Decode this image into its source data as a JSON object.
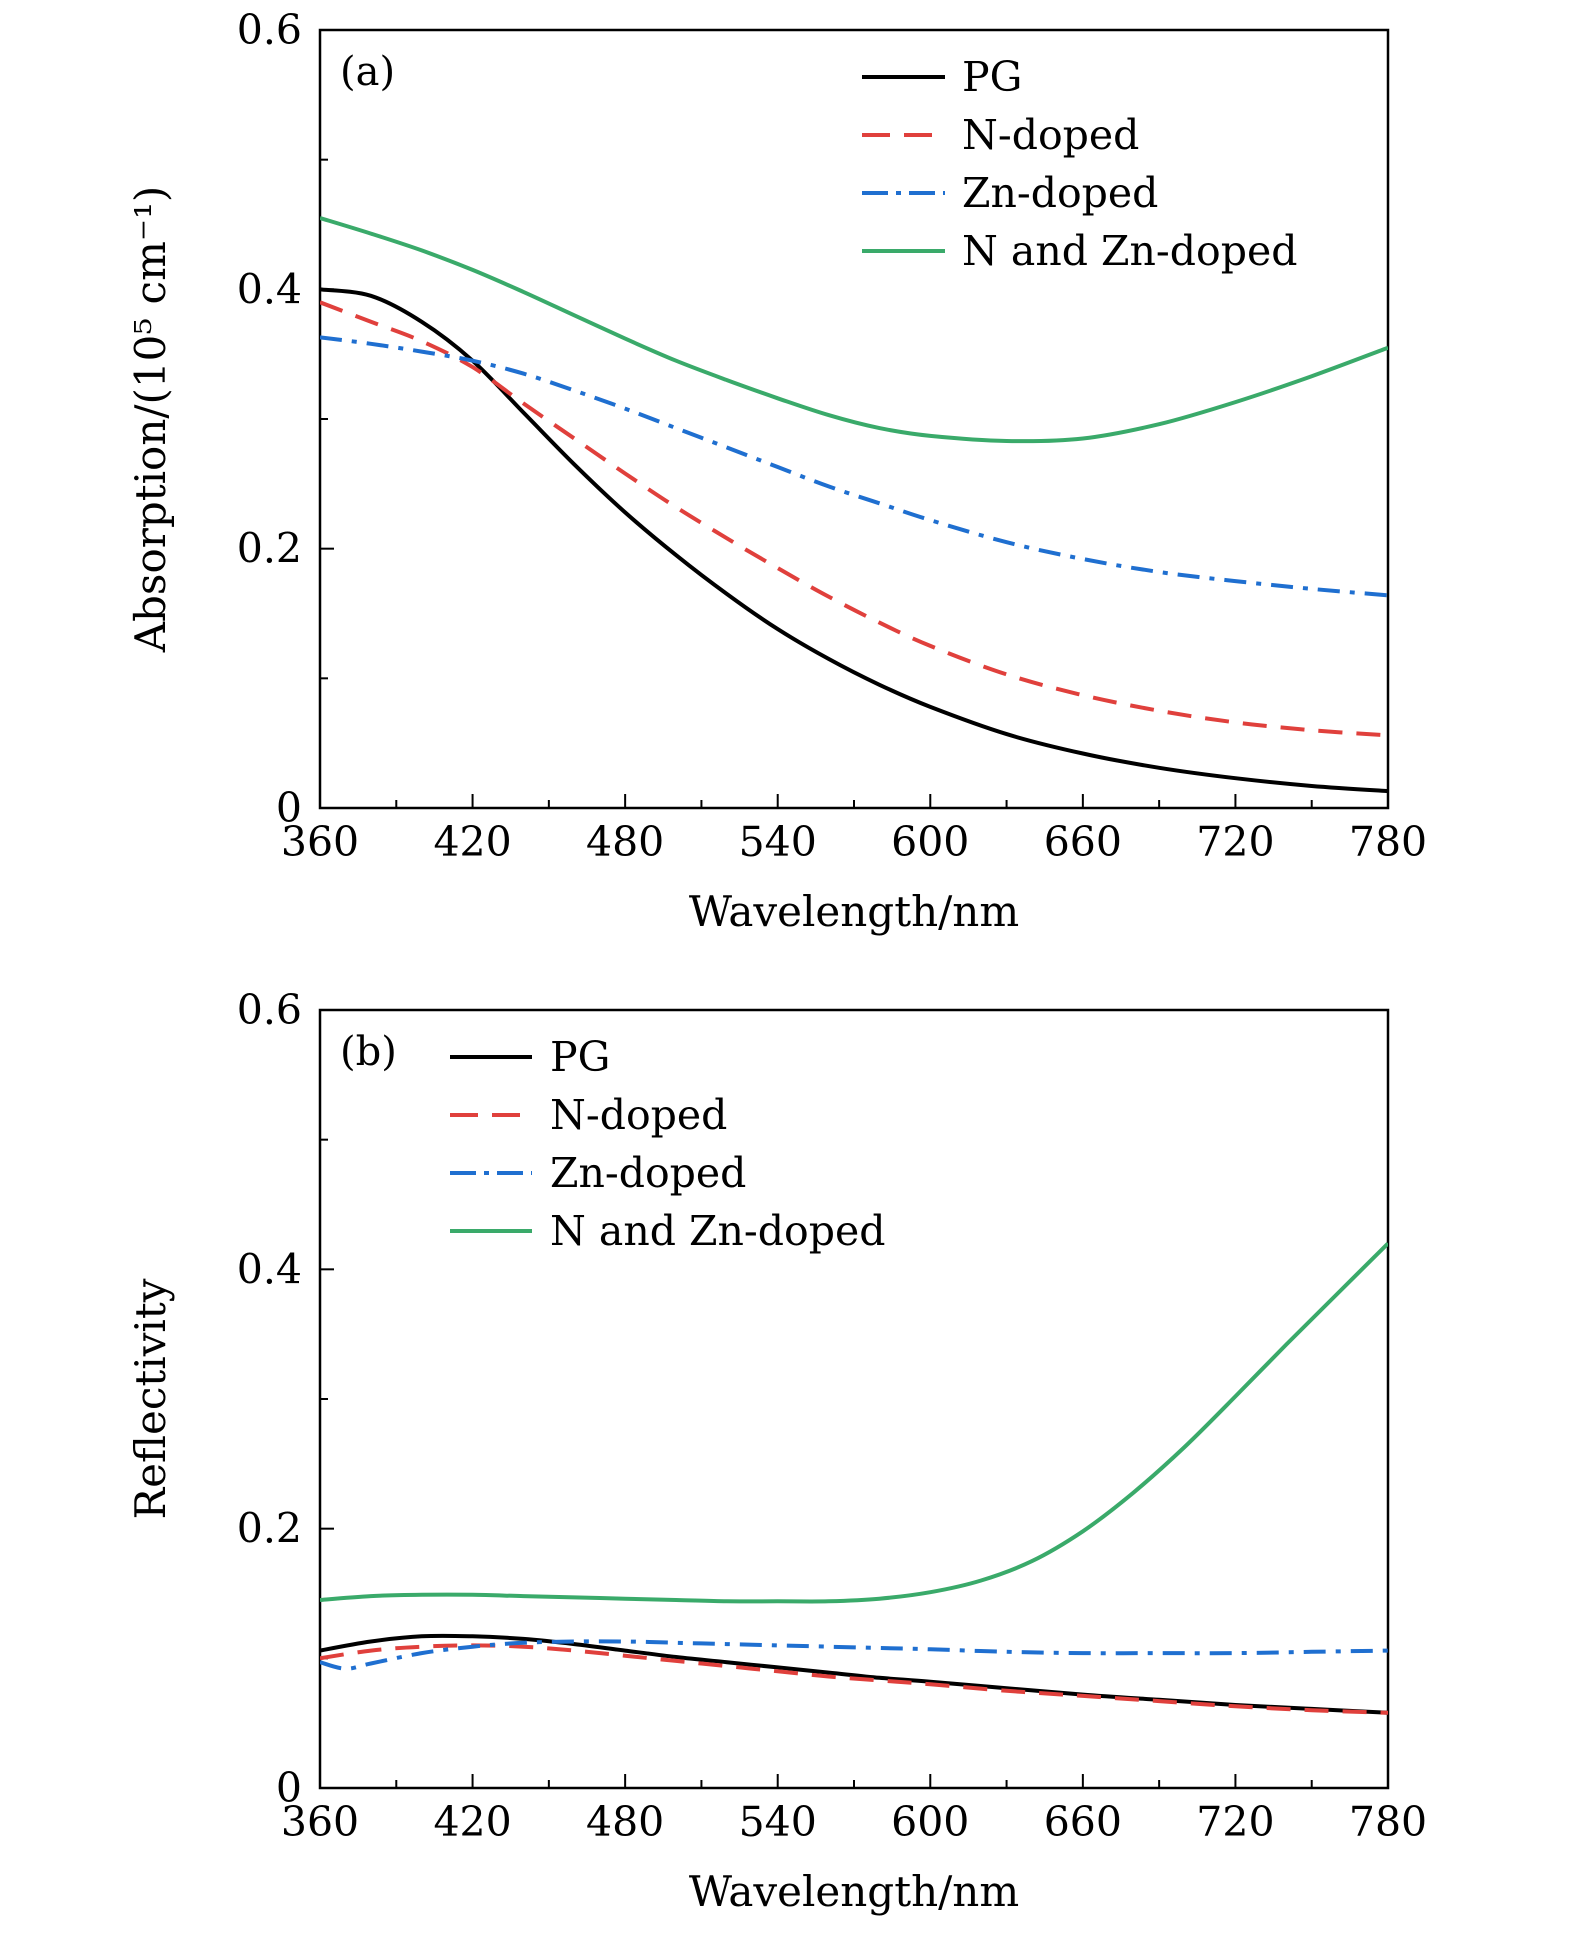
{
  "chart_data": [
    {
      "type": "line",
      "panel_label": "(a)",
      "xlabel": "Wavelength/nm",
      "ylabel": "Absorption/(10⁵ cm⁻¹)",
      "xlim": [
        360,
        780
      ],
      "ylim": [
        0,
        0.6
      ],
      "xticks": [
        "360",
        "420",
        "480",
        "540",
        "600",
        "660",
        "720",
        "780"
      ],
      "yticks": [
        "0",
        "0.2",
        "0.4",
        "0.6"
      ],
      "legend_position": "top-right",
      "series": [
        {
          "name": "PG",
          "color": "#000000",
          "dash": "solid",
          "x": [
            360,
            380,
            400,
            420,
            440,
            460,
            480,
            500,
            520,
            540,
            560,
            580,
            600,
            630,
            660,
            690,
            720,
            750,
            780
          ],
          "y": [
            0.4,
            0.395,
            0.375,
            0.345,
            0.305,
            0.265,
            0.228,
            0.195,
            0.165,
            0.138,
            0.115,
            0.095,
            0.078,
            0.057,
            0.042,
            0.031,
            0.023,
            0.017,
            0.013
          ]
        },
        {
          "name": "N-doped",
          "color": "#e0403c",
          "dash": "dash",
          "x": [
            360,
            380,
            400,
            420,
            440,
            460,
            480,
            500,
            520,
            540,
            560,
            580,
            600,
            630,
            660,
            690,
            720,
            750,
            780
          ],
          "y": [
            0.39,
            0.375,
            0.36,
            0.34,
            0.312,
            0.285,
            0.258,
            0.232,
            0.208,
            0.185,
            0.163,
            0.143,
            0.125,
            0.103,
            0.087,
            0.075,
            0.066,
            0.06,
            0.056
          ]
        },
        {
          "name": "Zn-doped",
          "color": "#1f6fd0",
          "dash": "dashdot",
          "x": [
            360,
            380,
            400,
            420,
            440,
            460,
            480,
            500,
            520,
            540,
            560,
            580,
            600,
            630,
            660,
            690,
            720,
            750,
            780
          ],
          "y": [
            0.363,
            0.358,
            0.352,
            0.345,
            0.335,
            0.322,
            0.308,
            0.293,
            0.278,
            0.263,
            0.248,
            0.235,
            0.222,
            0.205,
            0.192,
            0.182,
            0.175,
            0.169,
            0.164
          ]
        },
        {
          "name": "N and Zn-doped",
          "color": "#3aaa6a",
          "dash": "solid",
          "x": [
            360,
            380,
            400,
            420,
            440,
            460,
            480,
            500,
            520,
            540,
            560,
            580,
            600,
            630,
            660,
            690,
            720,
            750,
            780
          ],
          "y": [
            0.455,
            0.443,
            0.43,
            0.415,
            0.398,
            0.38,
            0.362,
            0.345,
            0.33,
            0.316,
            0.303,
            0.293,
            0.287,
            0.283,
            0.285,
            0.296,
            0.313,
            0.333,
            0.355
          ]
        }
      ]
    },
    {
      "type": "line",
      "panel_label": "(b)",
      "xlabel": "Wavelength/nm",
      "ylabel": "Reflectivity",
      "xlim": [
        360,
        780
      ],
      "ylim": [
        0,
        0.6
      ],
      "xticks": [
        "360",
        "420",
        "480",
        "540",
        "600",
        "660",
        "720",
        "780"
      ],
      "yticks": [
        "0",
        "0.2",
        "0.4",
        "0.6"
      ],
      "legend_position": "top-left",
      "series": [
        {
          "name": "PG",
          "color": "#000000",
          "dash": "solid",
          "x": [
            360,
            380,
            400,
            420,
            440,
            460,
            480,
            500,
            520,
            540,
            560,
            580,
            600,
            630,
            660,
            690,
            720,
            750,
            780
          ],
          "y": [
            0.106,
            0.113,
            0.117,
            0.117,
            0.115,
            0.111,
            0.106,
            0.101,
            0.097,
            0.093,
            0.089,
            0.085,
            0.082,
            0.077,
            0.072,
            0.068,
            0.064,
            0.061,
            0.058
          ]
        },
        {
          "name": "N-doped",
          "color": "#e0403c",
          "dash": "dash",
          "x": [
            360,
            380,
            400,
            420,
            440,
            460,
            480,
            500,
            520,
            540,
            560,
            580,
            600,
            630,
            660,
            690,
            720,
            750,
            780
          ],
          "y": [
            0.1,
            0.106,
            0.109,
            0.11,
            0.109,
            0.106,
            0.102,
            0.098,
            0.094,
            0.09,
            0.086,
            0.083,
            0.08,
            0.075,
            0.071,
            0.067,
            0.063,
            0.06,
            0.058
          ]
        },
        {
          "name": "Zn-doped",
          "color": "#1f6fd0",
          "dash": "dashdot",
          "x": [
            360,
            370,
            380,
            400,
            420,
            440,
            460,
            480,
            500,
            520,
            540,
            560,
            580,
            600,
            630,
            660,
            690,
            720,
            750,
            780
          ],
          "y": [
            0.097,
            0.092,
            0.096,
            0.104,
            0.109,
            0.112,
            0.113,
            0.113,
            0.112,
            0.111,
            0.11,
            0.109,
            0.108,
            0.107,
            0.105,
            0.104,
            0.104,
            0.104,
            0.105,
            0.106
          ]
        },
        {
          "name": "N and Zn-doped",
          "color": "#3aaa6a",
          "dash": "solid",
          "x": [
            360,
            380,
            400,
            420,
            440,
            460,
            480,
            500,
            520,
            540,
            560,
            580,
            600,
            620,
            640,
            660,
            680,
            700,
            720,
            740,
            760,
            780
          ],
          "y": [
            0.145,
            0.148,
            0.149,
            0.149,
            0.148,
            0.147,
            0.146,
            0.145,
            0.144,
            0.144,
            0.144,
            0.146,
            0.151,
            0.16,
            0.175,
            0.198,
            0.228,
            0.263,
            0.302,
            0.342,
            0.381,
            0.42
          ]
        }
      ]
    }
  ]
}
